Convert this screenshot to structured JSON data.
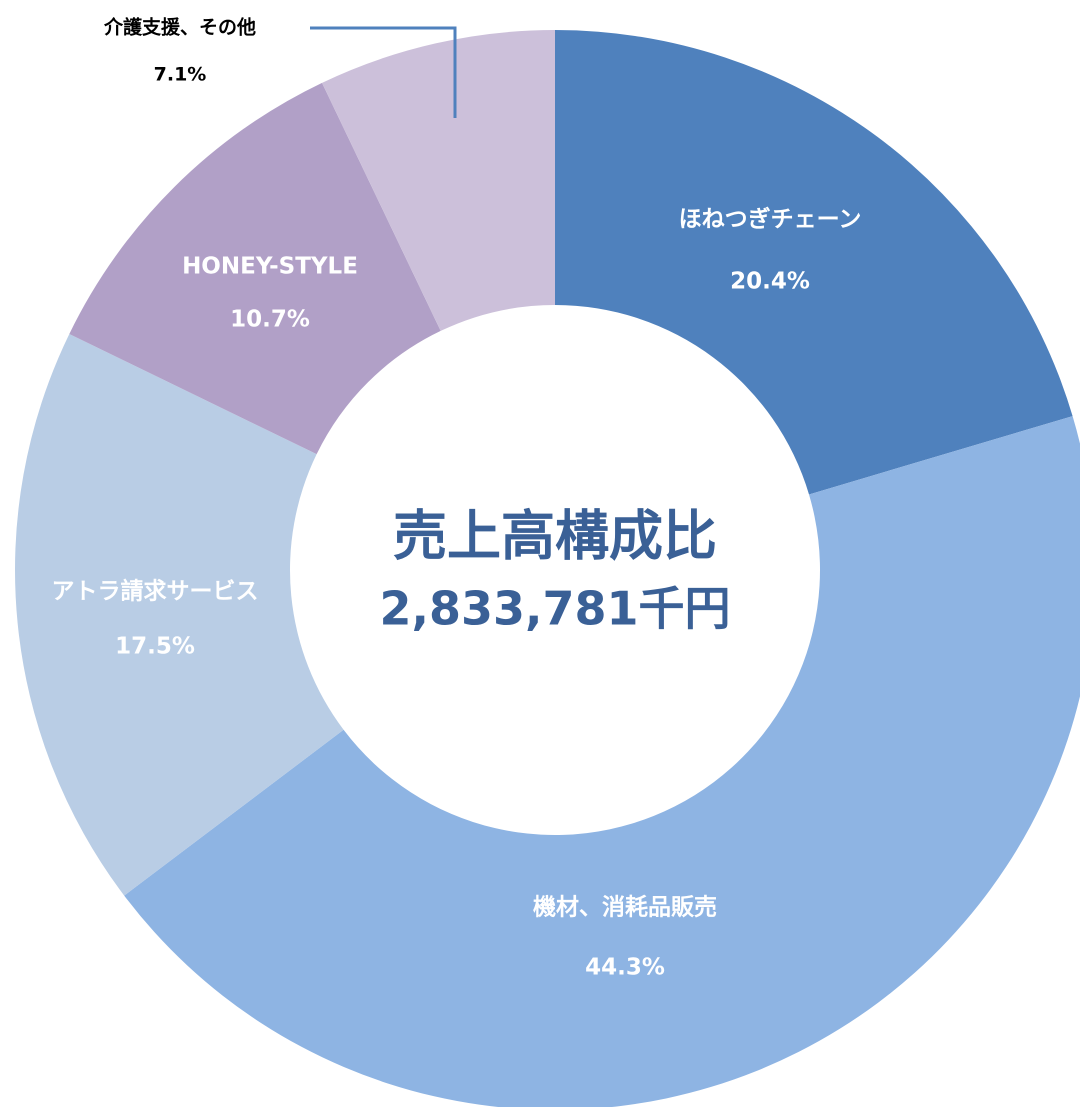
{
  "chart_data": {
    "type": "donut",
    "center_title": "売上高構成比",
    "center_subtitle": "2,833,781千円",
    "categories": [
      "ほねつぎチェーン",
      "機材、消耗品販売",
      "アトラ請求サービス",
      "HONEY-STYLE",
      "介護支援、その他"
    ],
    "values": [
      20.4,
      44.3,
      17.5,
      10.7,
      7.1
    ],
    "value_labels": [
      "20.4%",
      "44.3%",
      "17.5%",
      "10.7%",
      "7.1%"
    ],
    "colors": [
      "#4f81bd",
      "#8eb4e3",
      "#b9cde5",
      "#b1a0c7",
      "#ccc0da"
    ]
  }
}
